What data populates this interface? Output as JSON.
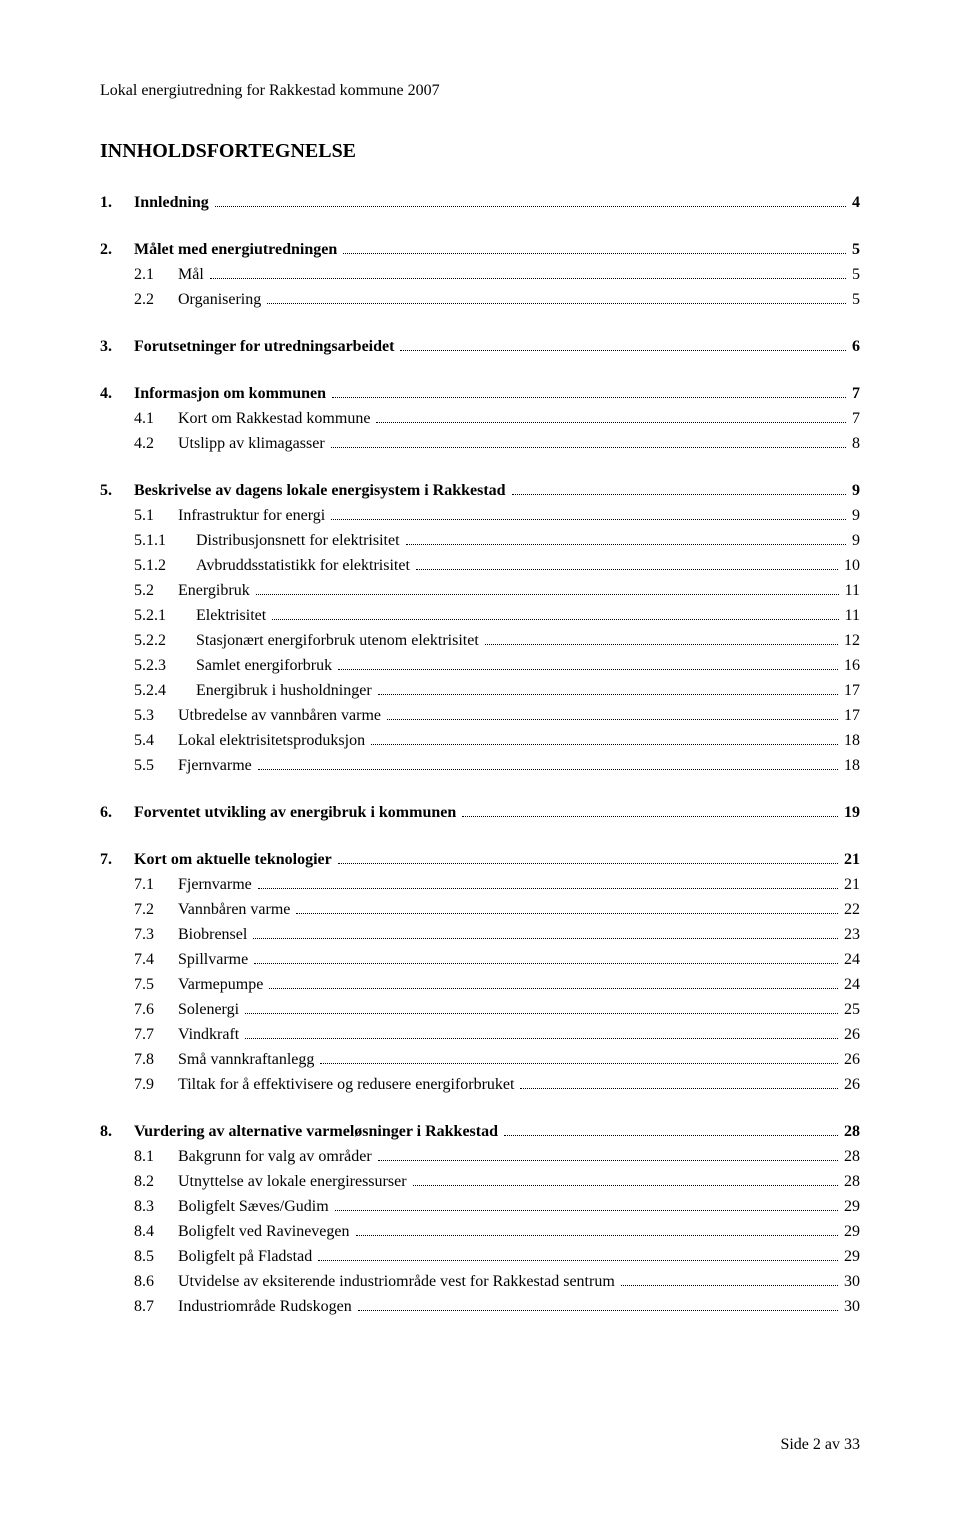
{
  "header": "Lokal energiutredning for Rakkestad kommune 2007",
  "title": "INNHOLDSFORTEGNELSE",
  "footer": "Side 2 av 33",
  "toc": [
    {
      "level": 0,
      "bold": true,
      "num": "1.",
      "text": "Innledning",
      "page": "4"
    },
    {
      "gap": true
    },
    {
      "level": 0,
      "bold": true,
      "num": "2.",
      "text": "Målet med energiutredningen",
      "page": "5"
    },
    {
      "level": 1,
      "num": "2.1",
      "text": "Mål",
      "page": "5"
    },
    {
      "level": 1,
      "num": "2.2",
      "text": "Organisering",
      "page": "5"
    },
    {
      "gap": true
    },
    {
      "level": 0,
      "bold": true,
      "num": "3.",
      "text": "Forutsetninger for utredningsarbeidet",
      "page": "6"
    },
    {
      "gap": true
    },
    {
      "level": 0,
      "bold": true,
      "num": "4.",
      "text": "Informasjon om kommunen",
      "page": "7"
    },
    {
      "level": 1,
      "num": "4.1",
      "text": "Kort om Rakkestad kommune",
      "page": "7"
    },
    {
      "level": 1,
      "num": "4.2",
      "text": "Utslipp av klimagasser",
      "page": "8"
    },
    {
      "gap": true
    },
    {
      "level": 0,
      "bold": true,
      "num": "5.",
      "text": "Beskrivelse av dagens lokale energisystem i Rakkestad",
      "page": "9"
    },
    {
      "level": 1,
      "num": "5.1",
      "text": "Infrastruktur for energi",
      "page": "9"
    },
    {
      "level": 2,
      "num": "5.1.1",
      "text": "Distribusjonsnett for elektrisitet",
      "page": "9"
    },
    {
      "level": 2,
      "num": "5.1.2",
      "text": "Avbruddsstatistikk for elektrisitet",
      "page": "10"
    },
    {
      "level": 1,
      "num": "5.2",
      "text": "Energibruk",
      "page": "11"
    },
    {
      "level": 2,
      "num": "5.2.1",
      "text": "Elektrisitet",
      "page": "11"
    },
    {
      "level": 2,
      "num": "5.2.2",
      "text": "Stasjonært energiforbruk utenom elektrisitet",
      "page": "12"
    },
    {
      "level": 2,
      "num": "5.2.3",
      "text": "Samlet energiforbruk",
      "page": "16"
    },
    {
      "level": 2,
      "num": "5.2.4",
      "text": "Energibruk i husholdninger",
      "page": "17"
    },
    {
      "level": 1,
      "num": "5.3",
      "text": "Utbredelse av vannbåren varme",
      "page": "17"
    },
    {
      "level": 1,
      "num": "5.4",
      "text": "Lokal elektrisitetsproduksjon",
      "page": "18"
    },
    {
      "level": 1,
      "num": "5.5",
      "text": "Fjernvarme",
      "page": "18"
    },
    {
      "gap": true
    },
    {
      "level": 0,
      "bold": true,
      "num": "6.",
      "text": "Forventet utvikling av energibruk i kommunen",
      "page": "19"
    },
    {
      "gap": true
    },
    {
      "level": 0,
      "bold": true,
      "num": "7.",
      "text": "Kort om aktuelle teknologier",
      "page": "21"
    },
    {
      "level": 1,
      "num": "7.1",
      "text": "Fjernvarme",
      "page": "21"
    },
    {
      "level": 1,
      "num": "7.2",
      "text": "Vannbåren varme",
      "page": "22"
    },
    {
      "level": 1,
      "num": "7.3",
      "text": "Biobrensel",
      "page": "23"
    },
    {
      "level": 1,
      "num": "7.4",
      "text": "Spillvarme",
      "page": "24"
    },
    {
      "level": 1,
      "num": "7.5",
      "text": "Varmepumpe",
      "page": "24"
    },
    {
      "level": 1,
      "num": "7.6",
      "text": "Solenergi",
      "page": "25"
    },
    {
      "level": 1,
      "num": "7.7",
      "text": "Vindkraft",
      "page": "26"
    },
    {
      "level": 1,
      "num": "7.8",
      "text": "Små vannkraftanlegg",
      "page": "26"
    },
    {
      "level": 1,
      "num": "7.9",
      "text": "Tiltak for å effektivisere og redusere energiforbruket",
      "page": "26"
    },
    {
      "gap": true
    },
    {
      "level": 0,
      "bold": true,
      "num": "8.",
      "text": "Vurdering av alternative varmeløsninger i Rakkestad",
      "page": "28"
    },
    {
      "level": 1,
      "num": "8.1",
      "text": "Bakgrunn for valg av områder",
      "page": "28"
    },
    {
      "level": 1,
      "num": "8.2",
      "text": "Utnyttelse av lokale energiressurser",
      "page": "28"
    },
    {
      "level": 1,
      "num": "8.3",
      "text": "Boligfelt Sæves/Gudim",
      "page": "29"
    },
    {
      "level": 1,
      "num": "8.4",
      "text": "Boligfelt ved Ravinevegen",
      "page": "29"
    },
    {
      "level": 1,
      "num": "8.5",
      "text": "Boligfelt på Fladstad",
      "page": "29"
    },
    {
      "level": 1,
      "num": "8.6",
      "text": "Utvidelse av eksiterende industriområde vest for Rakkestad sentrum",
      "page": "30"
    },
    {
      "level": 1,
      "num": "8.7",
      "text": "Industriområde Rudskogen",
      "page": "30"
    }
  ]
}
